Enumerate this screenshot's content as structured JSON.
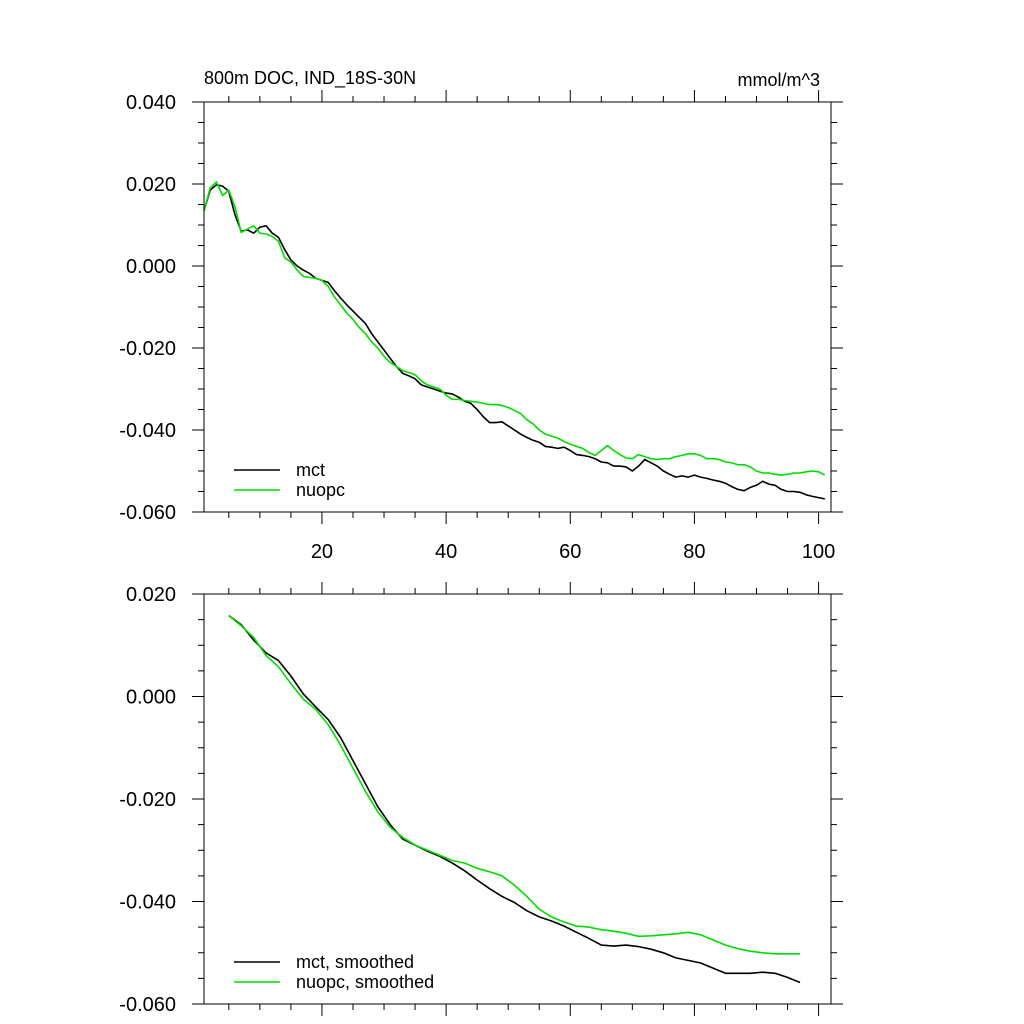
{
  "chart_data": [
    {
      "type": "line",
      "title": "800m DOC, IND_18S-30N",
      "units": "mmol/m^3",
      "xlabel": "",
      "ylabel": "",
      "xlim": [
        1,
        102
      ],
      "ylim": [
        -0.06,
        0.04
      ],
      "xticks": [
        20,
        40,
        60,
        80,
        100
      ],
      "xtick_labels": [
        "20",
        "40",
        "60",
        "80",
        "100"
      ],
      "yticks": [
        0.04,
        0.02,
        0.0,
        -0.02,
        -0.04,
        -0.06
      ],
      "ytick_labels": [
        "0.040",
        "0.020",
        "0.000",
        "-0.020",
        "-0.040",
        "-0.060"
      ],
      "legend_position": "bottom-left",
      "series": [
        {
          "name": "mct",
          "color": "#000000",
          "x": [
            1,
            2,
            3,
            4,
            5,
            6,
            7,
            8,
            9,
            10,
            11,
            12,
            13,
            14,
            15,
            16,
            17,
            18,
            19,
            20,
            21,
            22,
            23,
            24,
            25,
            26,
            27,
            28,
            29,
            30,
            31,
            32,
            33,
            34,
            35,
            36,
            37,
            38,
            39,
            40,
            41,
            42,
            43,
            44,
            45,
            46,
            47,
            48,
            49,
            50,
            51,
            52,
            53,
            54,
            55,
            56,
            57,
            58,
            59,
            60,
            61,
            62,
            63,
            64,
            65,
            66,
            67,
            68,
            69,
            70,
            71,
            72,
            73,
            74,
            75,
            76,
            77,
            78,
            79,
            80,
            81,
            82,
            83,
            84,
            85,
            86,
            87,
            88,
            89,
            90,
            91,
            92,
            93,
            94,
            95,
            96,
            97,
            98,
            99,
            100,
            101
          ],
          "values": [
            0.0135,
            0.0185,
            0.0198,
            0.0195,
            0.0182,
            0.0125,
            0.0085,
            0.0088,
            0.008,
            0.0095,
            0.0098,
            0.008,
            0.007,
            0.004,
            0.0015,
            0.0,
            -0.001,
            -0.0018,
            -0.003,
            -0.0035,
            -0.004,
            -0.006,
            -0.0078,
            -0.0095,
            -0.011,
            -0.0125,
            -0.014,
            -0.0165,
            -0.0185,
            -0.0205,
            -0.0225,
            -0.0245,
            -0.0262,
            -0.0268,
            -0.0275,
            -0.029,
            -0.0295,
            -0.03,
            -0.0305,
            -0.031,
            -0.0312,
            -0.032,
            -0.033,
            -0.0335,
            -0.035,
            -0.0368,
            -0.0382,
            -0.0382,
            -0.038,
            -0.039,
            -0.04,
            -0.041,
            -0.0418,
            -0.0425,
            -0.043,
            -0.044,
            -0.0442,
            -0.0445,
            -0.0442,
            -0.045,
            -0.046,
            -0.0462,
            -0.0465,
            -0.047,
            -0.0478,
            -0.048,
            -0.0488,
            -0.0488,
            -0.049,
            -0.05,
            -0.0488,
            -0.0472,
            -0.048,
            -0.0488,
            -0.05,
            -0.0508,
            -0.0515,
            -0.0512,
            -0.0515,
            -0.051,
            -0.0515,
            -0.0518,
            -0.0522,
            -0.0525,
            -0.053,
            -0.0538,
            -0.0545,
            -0.0548,
            -0.054,
            -0.0535,
            -0.0525,
            -0.0532,
            -0.0535,
            -0.0545,
            -0.055,
            -0.055,
            -0.0552,
            -0.0558,
            -0.0562,
            -0.0565,
            -0.0568
          ]
        },
        {
          "name": "nuopc",
          "color": "#00dd00",
          "x": [
            1,
            2,
            3,
            4,
            5,
            6,
            7,
            8,
            9,
            10,
            11,
            12,
            13,
            14,
            15,
            16,
            17,
            18,
            19,
            20,
            21,
            22,
            23,
            24,
            25,
            26,
            27,
            28,
            29,
            30,
            31,
            32,
            33,
            34,
            35,
            36,
            37,
            38,
            39,
            40,
            41,
            42,
            43,
            44,
            45,
            46,
            47,
            48,
            49,
            50,
            51,
            52,
            53,
            54,
            55,
            56,
            57,
            58,
            59,
            60,
            61,
            62,
            63,
            64,
            65,
            66,
            67,
            68,
            69,
            70,
            71,
            72,
            73,
            74,
            75,
            76,
            77,
            78,
            79,
            80,
            81,
            82,
            83,
            84,
            85,
            86,
            87,
            88,
            89,
            90,
            91,
            92,
            93,
            94,
            95,
            96,
            97,
            98,
            99,
            100,
            101
          ],
          "values": [
            0.0135,
            0.019,
            0.0205,
            0.0172,
            0.0185,
            0.0145,
            0.0082,
            0.009,
            0.0098,
            0.008,
            0.0078,
            0.0072,
            0.006,
            0.002,
            0.001,
            -0.001,
            -0.0025,
            -0.0028,
            -0.003,
            -0.0035,
            -0.005,
            -0.0075,
            -0.0095,
            -0.0115,
            -0.013,
            -0.015,
            -0.0165,
            -0.0185,
            -0.02,
            -0.022,
            -0.0235,
            -0.0245,
            -0.0255,
            -0.026,
            -0.0265,
            -0.028,
            -0.029,
            -0.0295,
            -0.03,
            -0.0315,
            -0.0325,
            -0.0325,
            -0.0328,
            -0.033,
            -0.0332,
            -0.0335,
            -0.0338,
            -0.0338,
            -0.034,
            -0.0345,
            -0.0352,
            -0.036,
            -0.0375,
            -0.0385,
            -0.04,
            -0.041,
            -0.0415,
            -0.042,
            -0.0428,
            -0.0435,
            -0.044,
            -0.0445,
            -0.0455,
            -0.0462,
            -0.045,
            -0.0438,
            -0.045,
            -0.046,
            -0.0468,
            -0.047,
            -0.046,
            -0.0465,
            -0.047,
            -0.0472,
            -0.047,
            -0.047,
            -0.0465,
            -0.0462,
            -0.0458,
            -0.0458,
            -0.0462,
            -0.047,
            -0.047,
            -0.0472,
            -0.0478,
            -0.048,
            -0.0485,
            -0.0485,
            -0.049,
            -0.05,
            -0.0505,
            -0.0505,
            -0.0508,
            -0.051,
            -0.0508,
            -0.0505,
            -0.0505,
            -0.0502,
            -0.05,
            -0.0502,
            -0.051
          ]
        }
      ]
    },
    {
      "type": "line",
      "title": "",
      "xlabel": "",
      "ylabel": "",
      "xlim": [
        1,
        102
      ],
      "ylim": [
        -0.06,
        0.02
      ],
      "xticks": [
        20,
        40,
        60,
        80,
        100
      ],
      "xtick_labels": [],
      "yticks": [
        0.02,
        0.0,
        -0.02,
        -0.04,
        -0.06
      ],
      "ytick_labels": [
        "0.020",
        "0.000",
        "-0.020",
        "-0.040",
        "-0.060"
      ],
      "legend_position": "bottom-left",
      "series": [
        {
          "name": "mct, smoothed",
          "color": "#000000",
          "x": [
            5,
            7,
            9,
            11,
            13,
            15,
            17,
            19,
            21,
            23,
            25,
            27,
            29,
            31,
            33,
            35,
            37,
            39,
            41,
            43,
            45,
            47,
            49,
            51,
            53,
            55,
            57,
            59,
            61,
            63,
            65,
            67,
            69,
            71,
            73,
            75,
            77,
            79,
            81,
            83,
            85,
            87,
            89,
            91,
            93,
            95,
            97
          ],
          "values": [
            0.0158,
            0.014,
            0.011,
            0.0085,
            0.007,
            0.004,
            0.0005,
            -0.002,
            -0.0045,
            -0.008,
            -0.0125,
            -0.017,
            -0.0215,
            -0.025,
            -0.0278,
            -0.029,
            -0.0302,
            -0.0312,
            -0.0325,
            -0.034,
            -0.0358,
            -0.0375,
            -0.039,
            -0.0402,
            -0.0418,
            -0.043,
            -0.0438,
            -0.0448,
            -0.046,
            -0.0472,
            -0.0485,
            -0.0487,
            -0.0485,
            -0.0488,
            -0.0493,
            -0.05,
            -0.051,
            -0.0515,
            -0.052,
            -0.053,
            -0.054,
            -0.054,
            -0.054,
            -0.0538,
            -0.054,
            -0.0548,
            -0.0558
          ]
        },
        {
          "name": "nuopc, smoothed",
          "color": "#00dd00",
          "x": [
            5,
            7,
            9,
            11,
            13,
            15,
            17,
            19,
            21,
            23,
            25,
            27,
            29,
            31,
            33,
            35,
            37,
            39,
            41,
            43,
            45,
            47,
            49,
            51,
            53,
            55,
            57,
            59,
            61,
            63,
            65,
            67,
            69,
            71,
            73,
            75,
            77,
            79,
            81,
            83,
            85,
            87,
            89,
            91,
            93,
            95,
            97
          ],
          "values": [
            0.0158,
            0.0138,
            0.0115,
            0.008,
            0.0058,
            0.0025,
            -0.0005,
            -0.0025,
            -0.0055,
            -0.0095,
            -0.014,
            -0.0185,
            -0.0225,
            -0.0255,
            -0.0275,
            -0.029,
            -0.03,
            -0.031,
            -0.032,
            -0.0325,
            -0.0335,
            -0.0342,
            -0.035,
            -0.0368,
            -0.039,
            -0.0415,
            -0.043,
            -0.044,
            -0.0448,
            -0.045,
            -0.0455,
            -0.0458,
            -0.0462,
            -0.0468,
            -0.0467,
            -0.0465,
            -0.0463,
            -0.046,
            -0.0465,
            -0.0475,
            -0.0485,
            -0.0492,
            -0.0497,
            -0.05,
            -0.0502,
            -0.0502,
            -0.0502
          ]
        }
      ]
    }
  ]
}
